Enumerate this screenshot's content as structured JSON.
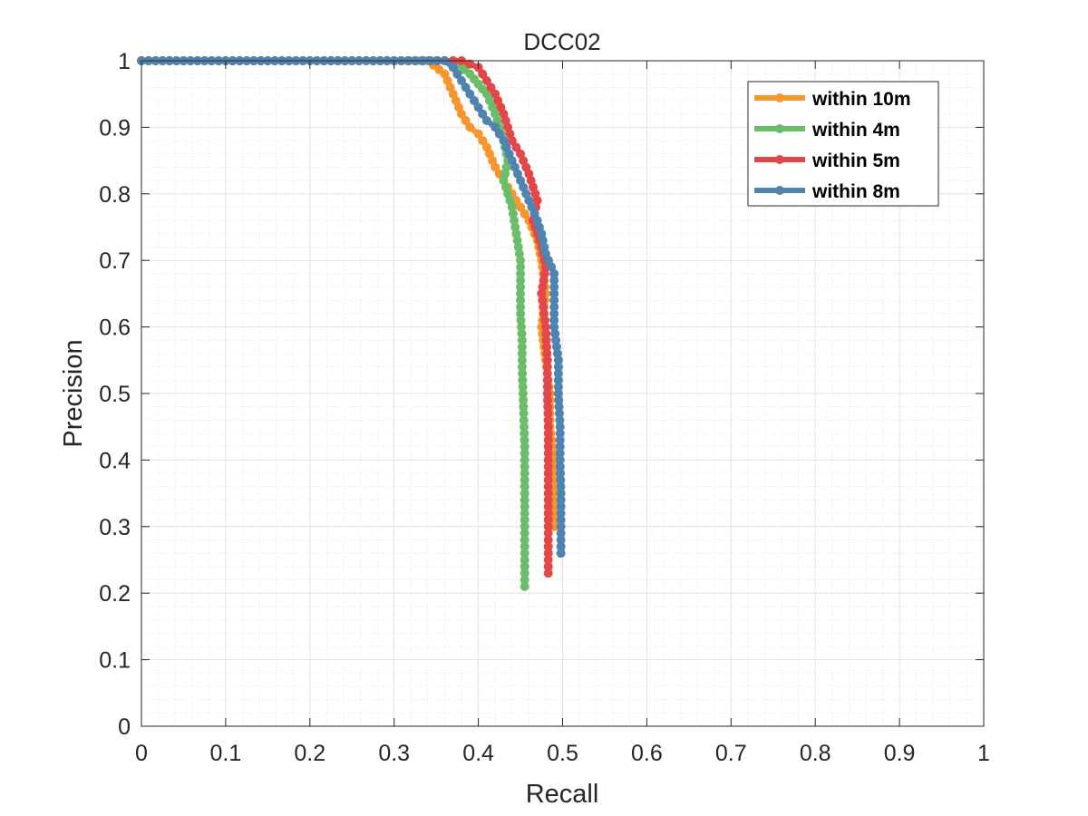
{
  "chart_data": {
    "type": "line",
    "title": "DCC02",
    "xlabel": "Recall",
    "ylabel": "Precision",
    "xlim": [
      0,
      1
    ],
    "ylim": [
      0,
      1
    ],
    "xticks": [
      "0",
      "0.1",
      "0.2",
      "0.3",
      "0.4",
      "0.5",
      "0.6",
      "0.7",
      "0.8",
      "0.9",
      "1"
    ],
    "yticks": [
      "0",
      "0.1",
      "0.2",
      "0.3",
      "0.4",
      "0.5",
      "0.6",
      "0.7",
      "0.8",
      "0.9",
      "1"
    ],
    "grid": true,
    "minor_grid": true,
    "legend_position": "top-right",
    "series": [
      {
        "name": "within 10m",
        "color": "#F7962F",
        "points": [
          [
            0,
            1
          ],
          [
            0.1,
            1
          ],
          [
            0.2,
            1
          ],
          [
            0.3,
            1
          ],
          [
            0.34,
            1
          ],
          [
            0.36,
            0.98
          ],
          [
            0.37,
            0.95
          ],
          [
            0.38,
            0.92
          ],
          [
            0.39,
            0.9
          ],
          [
            0.4,
            0.89
          ],
          [
            0.41,
            0.87
          ],
          [
            0.42,
            0.84
          ],
          [
            0.43,
            0.82
          ],
          [
            0.44,
            0.8
          ],
          [
            0.45,
            0.78
          ],
          [
            0.46,
            0.76
          ],
          [
            0.47,
            0.73
          ],
          [
            0.475,
            0.7
          ],
          [
            0.48,
            0.65
          ],
          [
            0.475,
            0.6
          ],
          [
            0.48,
            0.55
          ],
          [
            0.485,
            0.5
          ],
          [
            0.485,
            0.45
          ],
          [
            0.49,
            0.4
          ],
          [
            0.49,
            0.35
          ],
          [
            0.49,
            0.3
          ]
        ]
      },
      {
        "name": "within 4m",
        "color": "#6CBD6A",
        "points": [
          [
            0,
            1
          ],
          [
            0.1,
            1
          ],
          [
            0.2,
            1
          ],
          [
            0.3,
            1
          ],
          [
            0.35,
            1
          ],
          [
            0.37,
            1
          ],
          [
            0.39,
            0.98
          ],
          [
            0.41,
            0.95
          ],
          [
            0.42,
            0.92
          ],
          [
            0.43,
            0.88
          ],
          [
            0.435,
            0.85
          ],
          [
            0.43,
            0.82
          ],
          [
            0.44,
            0.78
          ],
          [
            0.445,
            0.74
          ],
          [
            0.45,
            0.7
          ],
          [
            0.45,
            0.66
          ],
          [
            0.45,
            0.62
          ],
          [
            0.452,
            0.58
          ],
          [
            0.452,
            0.54
          ],
          [
            0.453,
            0.5
          ],
          [
            0.454,
            0.46
          ],
          [
            0.455,
            0.42
          ],
          [
            0.455,
            0.38
          ],
          [
            0.455,
            0.34
          ],
          [
            0.455,
            0.3
          ],
          [
            0.455,
            0.26
          ],
          [
            0.455,
            0.23
          ],
          [
            0.455,
            0.21
          ]
        ]
      },
      {
        "name": "within 5m",
        "color": "#E34748",
        "points": [
          [
            0,
            1
          ],
          [
            0.1,
            1
          ],
          [
            0.2,
            1
          ],
          [
            0.3,
            1
          ],
          [
            0.36,
            1
          ],
          [
            0.38,
            1
          ],
          [
            0.4,
            0.99
          ],
          [
            0.41,
            0.97
          ],
          [
            0.42,
            0.95
          ],
          [
            0.43,
            0.92
          ],
          [
            0.44,
            0.88
          ],
          [
            0.45,
            0.86
          ],
          [
            0.46,
            0.83
          ],
          [
            0.47,
            0.79
          ],
          [
            0.465,
            0.76
          ],
          [
            0.47,
            0.74
          ],
          [
            0.475,
            0.72
          ],
          [
            0.48,
            0.69
          ],
          [
            0.475,
            0.65
          ],
          [
            0.48,
            0.6
          ],
          [
            0.482,
            0.55
          ],
          [
            0.482,
            0.5
          ],
          [
            0.483,
            0.45
          ],
          [
            0.483,
            0.4
          ],
          [
            0.483,
            0.35
          ],
          [
            0.483,
            0.3
          ],
          [
            0.483,
            0.26
          ],
          [
            0.483,
            0.23
          ]
        ]
      },
      {
        "name": "within 8m",
        "color": "#5084B0",
        "points": [
          [
            0,
            1
          ],
          [
            0.1,
            1
          ],
          [
            0.2,
            1
          ],
          [
            0.3,
            1
          ],
          [
            0.36,
            1
          ],
          [
            0.37,
            0.99
          ],
          [
            0.38,
            0.97
          ],
          [
            0.39,
            0.95
          ],
          [
            0.4,
            0.93
          ],
          [
            0.41,
            0.91
          ],
          [
            0.42,
            0.9
          ],
          [
            0.43,
            0.88
          ],
          [
            0.44,
            0.85
          ],
          [
            0.45,
            0.82
          ],
          [
            0.46,
            0.79
          ],
          [
            0.47,
            0.76
          ],
          [
            0.475,
            0.74
          ],
          [
            0.48,
            0.71
          ],
          [
            0.49,
            0.68
          ],
          [
            0.49,
            0.64
          ],
          [
            0.49,
            0.6
          ],
          [
            0.495,
            0.55
          ],
          [
            0.495,
            0.5
          ],
          [
            0.497,
            0.45
          ],
          [
            0.497,
            0.4
          ],
          [
            0.498,
            0.35
          ],
          [
            0.498,
            0.3
          ],
          [
            0.498,
            0.26
          ]
        ]
      }
    ]
  }
}
